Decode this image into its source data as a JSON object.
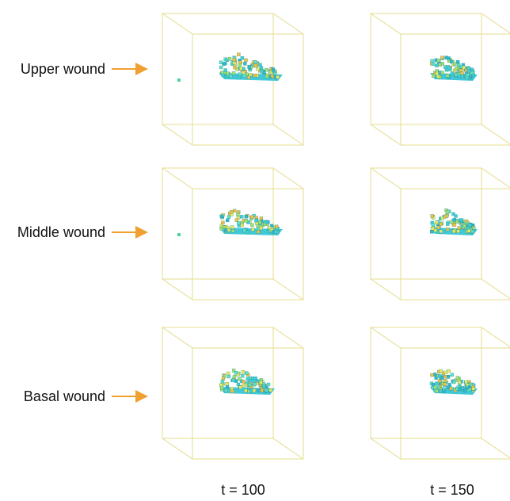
{
  "rows": [
    {
      "label": "Upper wound"
    },
    {
      "label": "Middle wound"
    },
    {
      "label": "Basal wound"
    }
  ],
  "columns": [
    {
      "label": "t = 100"
    },
    {
      "label": "t = 150"
    }
  ]
}
